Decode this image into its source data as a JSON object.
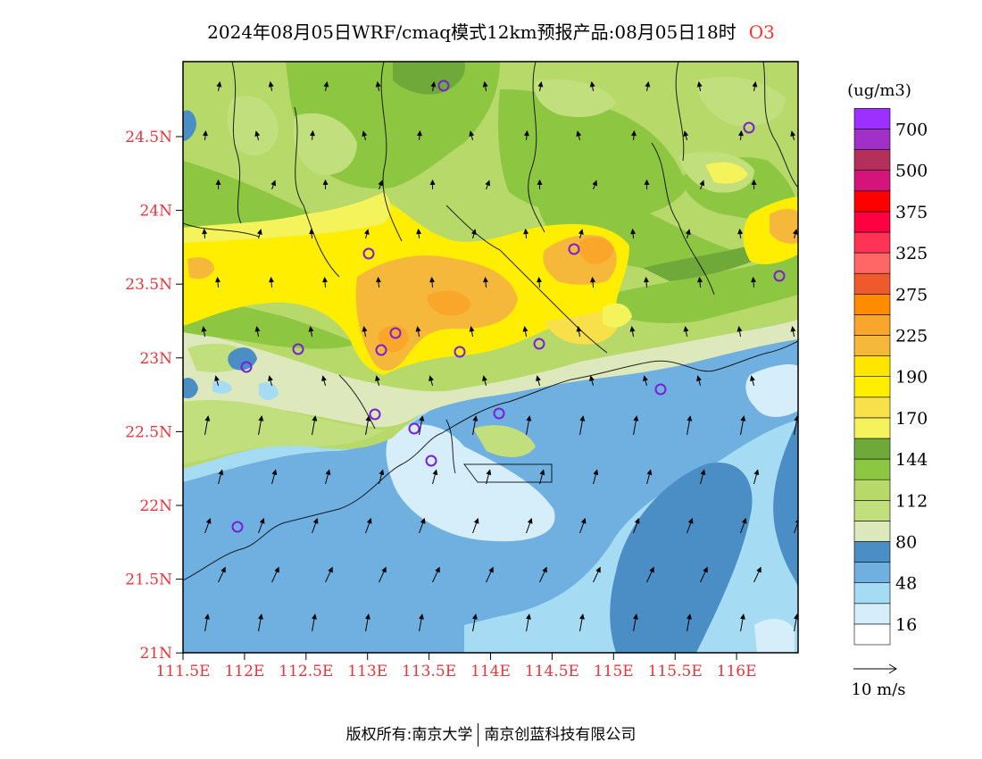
{
  "title": {
    "main": "2024年08月05日WRF/cmaq模式12km预报产品:08月05日18时",
    "pollutant": "O3"
  },
  "map": {
    "lat_labels": [
      "24.5N",
      "24N",
      "23.5N",
      "23N",
      "22.5N",
      "22N",
      "21.5N",
      "21N"
    ],
    "lon_labels": [
      "111.5E",
      "112E",
      "112.5E",
      "113E",
      "113.5E",
      "114E",
      "114.5E",
      "115E",
      "115.5E",
      "116E"
    ],
    "station_marker": "circle-icon"
  },
  "colorbar": {
    "unit": "(ug/m3)",
    "bins": [
      {
        "color": "#ffffff"
      },
      {
        "color": "#d6eefa"
      },
      {
        "color": "#a6dbf4"
      },
      {
        "color": "#70b0e0"
      },
      {
        "color": "#4b8ec6"
      },
      {
        "color": "#dde9bd"
      },
      {
        "color": "#c1df7c"
      },
      {
        "color": "#b6d96a"
      },
      {
        "color": "#8dc641"
      },
      {
        "color": "#6ea93a"
      },
      {
        "color": "#f5f35c"
      },
      {
        "color": "#f7e04a"
      },
      {
        "color": "#ffee00"
      },
      {
        "color": "#ffe600"
      },
      {
        "color": "#f5b83a"
      },
      {
        "color": "#faa62a"
      },
      {
        "color": "#ff8c00"
      },
      {
        "color": "#ee5a2c"
      },
      {
        "color": "#ff6666"
      },
      {
        "color": "#ff3355"
      },
      {
        "color": "#ff0040"
      },
      {
        "color": "#ff0000"
      },
      {
        "color": "#d4147a"
      },
      {
        "color": "#b4305a"
      },
      {
        "color": "#a030c8"
      },
      {
        "color": "#9b30ff"
      }
    ],
    "labels": [
      "16",
      "48",
      "80",
      "112",
      "144",
      "170",
      "190",
      "225",
      "275",
      "325",
      "375",
      "500",
      "700"
    ]
  },
  "wind_legend": {
    "label": "10 m/s"
  },
  "footer": {
    "copyright": "版权所有:南京大学",
    "company": "南京创蓝科技有限公司"
  }
}
